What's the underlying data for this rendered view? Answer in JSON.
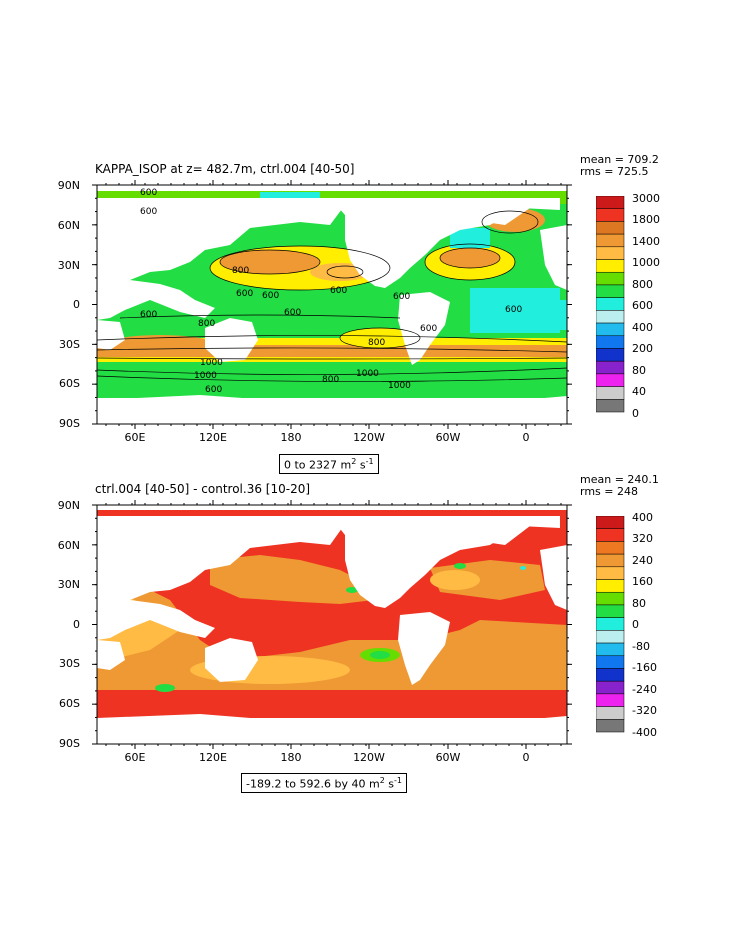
{
  "panel1": {
    "title": "KAPPA_ISOP at z= 482.7m, ctrl.004 [40-50]",
    "mean": "mean = 709.2",
    "rms": "rms = 725.5",
    "range_text": "0 to 2327",
    "units": "m",
    "units_exp1": "2",
    "units_s": " s",
    "units_exp2": "-1",
    "y_ticks": [
      "90N",
      "60N",
      "30N",
      "0",
      "30S",
      "60S",
      "90S"
    ],
    "x_ticks": [
      "60E",
      "120E",
      "180",
      "120W",
      "60W",
      "0"
    ],
    "colorbar_labels": [
      "3000",
      "1800",
      "1400",
      "1000",
      "800",
      "600",
      "400",
      "200",
      "80",
      "40",
      "0"
    ],
    "contour_labels": [
      "600",
      "600",
      "800",
      "600",
      "600",
      "600",
      "600",
      "600",
      "600",
      "600",
      "800",
      "800",
      "1000",
      "1000",
      "1000",
      "1000",
      "800",
      "600",
      "600"
    ]
  },
  "panel2": {
    "title": "ctrl.004 [40-50] - control.36 [10-20]",
    "mean": "mean = 240.1",
    "rms": "rms = 248",
    "range_text": "-189.2 to 592.6 by 40",
    "units": "m",
    "units_exp1": "2",
    "units_s": " s",
    "units_exp2": "-1",
    "y_ticks": [
      "90N",
      "60N",
      "30N",
      "0",
      "30S",
      "60S",
      "90S"
    ],
    "x_ticks": [
      "60E",
      "120E",
      "180",
      "120W",
      "60W",
      "0"
    ],
    "colorbar_labels": [
      "400",
      "320",
      "240",
      "160",
      "80",
      "0",
      "-80",
      "-160",
      "-240",
      "-320",
      "-400"
    ]
  },
  "colors": {
    "cb1": [
      "#cc1a1a",
      "#ee3322",
      "#dd7722",
      "#ee9933",
      "#ffbb44",
      "#ffee00",
      "#66dd00",
      "#22dd44",
      "#22eedd",
      "#bbeeee",
      "#22bbee",
      "#1177ee",
      "#1133cc",
      "#8822cc",
      "#ee22ee",
      "#cccccc",
      "#777777"
    ],
    "cb2": [
      "#cc1a1a",
      "#ee3322",
      "#ee7722",
      "#ee9933",
      "#ffbb44",
      "#ffee00",
      "#66dd00",
      "#22dd44",
      "#22eedd",
      "#bbeeee",
      "#22bbee",
      "#1177ee",
      "#1133cc",
      "#8822cc",
      "#ee22ee",
      "#cccccc",
      "#777777"
    ]
  }
}
